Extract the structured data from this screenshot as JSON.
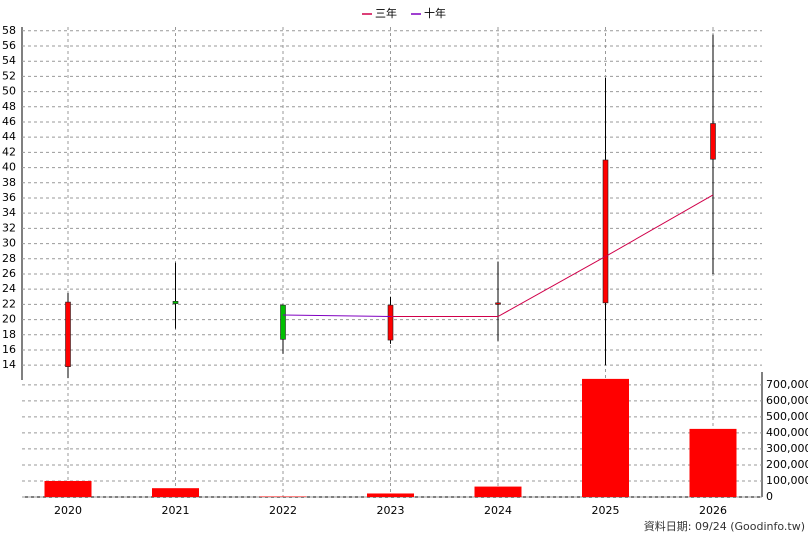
{
  "chart_data": [
    {
      "type": "candlestick",
      "categories": [
        "2020",
        "2021",
        "2022",
        "2023",
        "2024",
        "2025",
        "2026"
      ],
      "open": [
        13.8,
        22.4,
        21.9,
        17.3,
        22.0,
        22.2,
        41.1
      ],
      "close": [
        22.3,
        22.1,
        17.4,
        21.9,
        22.2,
        41.0,
        45.8
      ],
      "high": [
        23.5,
        27.5,
        22.0,
        23.0,
        27.6,
        51.8,
        57.5
      ],
      "low": [
        12.3,
        18.8,
        15.5,
        16.8,
        17.2,
        14.0,
        26.0
      ],
      "up_color": "#ff0000",
      "down_color": "#00c000",
      "series": [
        {
          "name": "三年",
          "color": "#d0004a",
          "values": [
            null,
            null,
            null,
            20.4,
            20.4,
            28.3,
            36.4
          ]
        },
        {
          "name": "十年",
          "color": "#8000c0",
          "values": [
            null,
            null,
            20.6,
            20.4,
            null,
            null,
            null
          ]
        }
      ],
      "ylim": [
        13.1,
        58.5
      ],
      "yticks": [
        14,
        16,
        18,
        20,
        22,
        24,
        26,
        28,
        30,
        32,
        34,
        36,
        38,
        40,
        42,
        44,
        46,
        48,
        50,
        52,
        54,
        56,
        58
      ],
      "grid": true
    },
    {
      "type": "bar",
      "color": "#ff0000",
      "values": [
        100000,
        55000,
        3000,
        22000,
        65000,
        737000,
        425000
      ],
      "ylim": [
        0,
        780000
      ],
      "yticks": [
        {
          "value": 0,
          "label": "0"
        },
        {
          "value": 100000,
          "label": "100,000"
        },
        {
          "value": 200000,
          "label": "200,000"
        },
        {
          "value": 300000,
          "label": "300,000"
        },
        {
          "value": 400000,
          "label": "400,000"
        },
        {
          "value": 500000,
          "label": "500,000"
        },
        {
          "value": 600000,
          "label": "600,000"
        },
        {
          "value": 700000,
          "label": "700,000"
        }
      ],
      "grid": true,
      "footnote": "資料日期: 09/24  (Goodinfo.tw)"
    }
  ]
}
